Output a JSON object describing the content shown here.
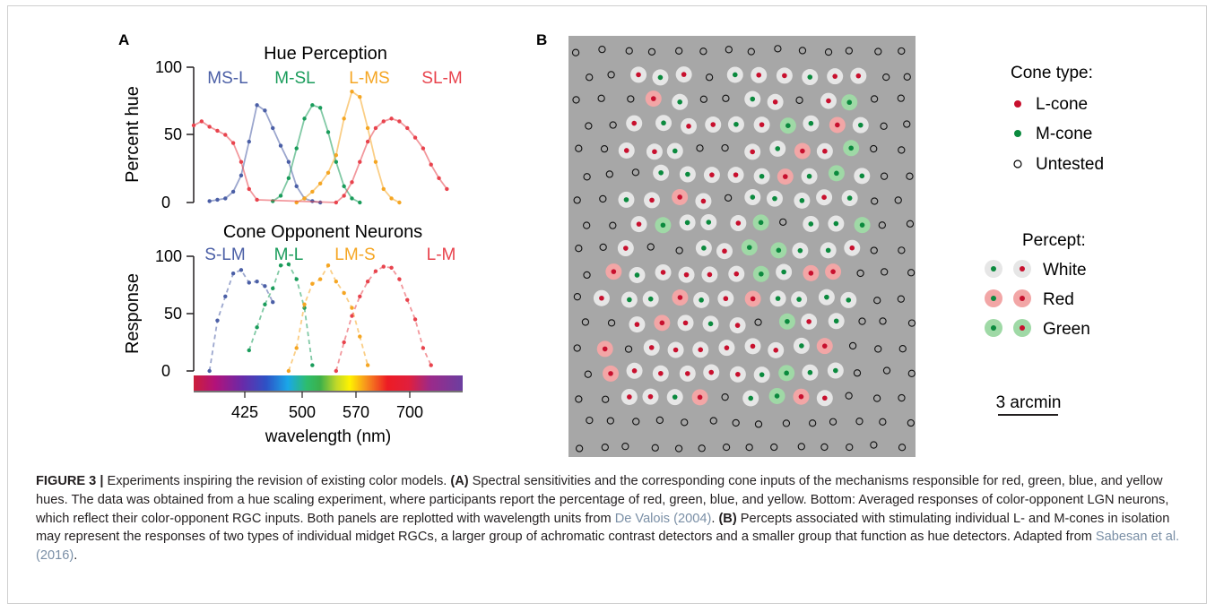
{
  "panel_a": {
    "label": "A",
    "hue": {
      "title": "Hue Perception",
      "ylabel": "Percent hue",
      "ylim": [
        0,
        100
      ],
      "yticks": [
        "100",
        "50",
        "0"
      ],
      "series": [
        {
          "name": "MS-L",
          "color": "#4b5fa6",
          "x": [
            400,
            410,
            420,
            430,
            440,
            450,
            460,
            470,
            480,
            490,
            500,
            510,
            520,
            530,
            540
          ],
          "y": [
            1,
            2,
            3,
            8,
            20,
            45,
            72,
            68,
            55,
            42,
            30,
            12,
            3,
            1,
            0
          ]
        },
        {
          "name": "M-SL",
          "color": "#1a9c5b",
          "x": [
            480,
            490,
            500,
            510,
            520,
            530,
            540,
            550,
            560,
            570,
            580,
            590
          ],
          "y": [
            1,
            5,
            18,
            40,
            62,
            72,
            70,
            52,
            30,
            12,
            3,
            0
          ]
        },
        {
          "name": "L-MS",
          "color": "#f5a623",
          "x": [
            510,
            520,
            530,
            540,
            550,
            560,
            570,
            580,
            590,
            600,
            610,
            620,
            630,
            640
          ],
          "y": [
            0,
            3,
            8,
            14,
            22,
            35,
            62,
            82,
            78,
            55,
            30,
            10,
            3,
            0
          ]
        },
        {
          "name": "SL-M",
          "color": "#e8434d",
          "x": [
            380,
            390,
            400,
            410,
            420,
            430,
            440,
            450,
            460,
            560,
            570,
            580,
            590,
            600,
            610,
            620,
            630,
            640,
            650,
            660,
            670,
            680,
            690,
            700
          ],
          "y": [
            57,
            60,
            56,
            53,
            50,
            44,
            30,
            10,
            2,
            0,
            5,
            15,
            30,
            45,
            55,
            60,
            62,
            60,
            55,
            48,
            40,
            28,
            18,
            10
          ]
        }
      ]
    },
    "cone": {
      "title": "Cone Opponent Neurons",
      "ylabel": "Response",
      "ylim": [
        0,
        100
      ],
      "yticks": [
        "100",
        "50",
        "0"
      ],
      "xlabel": "wavelength (nm)",
      "xtick_labels": [
        "425",
        "500",
        "570",
        "700"
      ],
      "series": [
        {
          "name": "S-LM",
          "color": "#4b5fa6",
          "x": [
            400,
            410,
            420,
            430,
            440,
            450,
            460,
            470,
            480
          ],
          "y": [
            0,
            44,
            65,
            85,
            88,
            77,
            78,
            74,
            60
          ]
        },
        {
          "name": "M-L",
          "color": "#1a9c5b",
          "x": [
            450,
            460,
            470,
            480,
            490,
            500,
            510,
            520,
            530
          ],
          "y": [
            18,
            38,
            58,
            72,
            92,
            93,
            80,
            55,
            5
          ]
        },
        {
          "name": "LM-S",
          "color": "#f5a623",
          "x": [
            500,
            510,
            520,
            530,
            540,
            550,
            560,
            570,
            580,
            590,
            600
          ],
          "y": [
            0,
            20,
            58,
            76,
            80,
            92,
            78,
            68,
            55,
            30,
            5
          ]
        },
        {
          "name": "L-M",
          "color": "#e8434d",
          "x": [
            560,
            570,
            580,
            590,
            600,
            610,
            620,
            630,
            640,
            650,
            660,
            670,
            680
          ],
          "y": [
            0,
            25,
            48,
            65,
            78,
            87,
            91,
            90,
            80,
            62,
            45,
            20,
            5
          ]
        }
      ]
    }
  },
  "panel_b": {
    "label": "B",
    "legend_cone_title": "Cone type:",
    "legend_cone_items": [
      {
        "label": "L-cone",
        "color": "#c8102e"
      },
      {
        "label": "M-cone",
        "color": "#0b8a3e"
      },
      {
        "label": "Untested",
        "color": "#000000"
      }
    ],
    "legend_percept_title": "Percept:",
    "legend_percept_items": [
      {
        "label": "White",
        "halo": "#e6e6e6"
      },
      {
        "label": "Red",
        "halo": "#f2a6a6"
      },
      {
        "label": "Green",
        "halo": "#9fd9a6"
      }
    ],
    "scale_bar_label": "3 arcmin",
    "colors": {
      "background": "#a7a7a7"
    }
  },
  "caption": {
    "label": "FIGURE 3 |",
    "intro": " Experiments inspiring the revision of existing color models. ",
    "a_tag": "(A)",
    "a_text_1": " Spectral sensitivities and the corresponding cone inputs of the mechanisms responsible for red, green, blue, and yellow hues. The data was obtained from a hue scaling experiment, where participants report the percentage of red, green, blue, and yellow. Bottom: Averaged responses of color-opponent LGN neurons, which reflect their color-opponent RGC inputs. Both panels are replotted with wavelength units from ",
    "ref1": "De Valois (2004)",
    "a_text_2": ". ",
    "b_tag": "(B)",
    "b_text_1": " Percepts associated with stimulating individual L- and M-cones in isolation may represent the responses of two types of individual midget RGCs, a larger group of achromatic contrast detectors and a smaller group that function as hue detectors. Adapted from ",
    "ref2": "Sabesan et al. (2016)",
    "b_text_2": "."
  }
}
